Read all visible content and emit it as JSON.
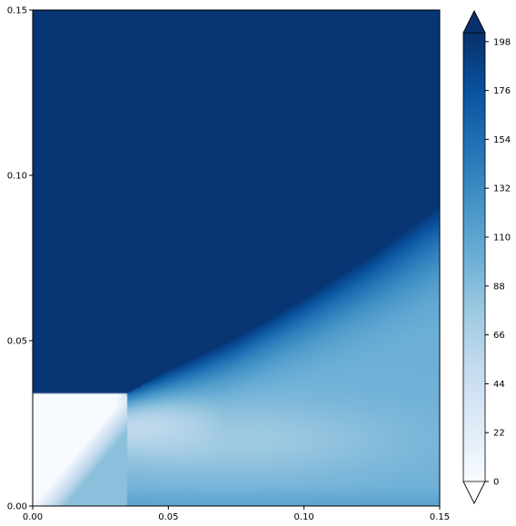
{
  "chart_data": {
    "type": "heatmap",
    "title": "",
    "xlabel": "",
    "ylabel": "",
    "xlim": [
      0.0,
      0.15
    ],
    "ylim": [
      0.0,
      0.15
    ],
    "x_ticks": [
      {
        "value": 0.0,
        "label": "0.00"
      },
      {
        "value": 0.05,
        "label": "0.05"
      },
      {
        "value": 0.1,
        "label": "0.10"
      },
      {
        "value": 0.15,
        "label": "0.15"
      }
    ],
    "y_ticks": [
      {
        "value": 0.0,
        "label": "0.00"
      },
      {
        "value": 0.05,
        "label": "0.05"
      },
      {
        "value": 0.1,
        "label": "0.10"
      },
      {
        "value": 0.15,
        "label": "0.15"
      }
    ],
    "colormap": "Blues",
    "colorbar": {
      "extend": "both",
      "range": [
        0,
        202
      ],
      "ticks": [
        0,
        22,
        44,
        66,
        88,
        110,
        132,
        154,
        176,
        198
      ],
      "tick_labels": [
        "0",
        "22",
        "44",
        "66",
        "88",
        "110",
        "132",
        "154",
        "176",
        "198"
      ],
      "under_color": "#ffffff",
      "over_color": "#08306b"
    },
    "field_description_values": {
      "saturated_region_value": 198,
      "low_rectangle_value": 0,
      "low_rectangle_extent": {
        "x": [
          0.0,
          0.035
        ],
        "y": [
          0.0,
          0.034
        ]
      },
      "boundary_curve_points": [
        {
          "x": 0.035,
          "y": 0.034
        },
        {
          "x": 0.05,
          "y": 0.041
        },
        {
          "x": 0.075,
          "y": 0.051
        },
        {
          "x": 0.1,
          "y": 0.063
        },
        {
          "x": 0.125,
          "y": 0.076
        },
        {
          "x": 0.15,
          "y": 0.091
        }
      ],
      "lower_right_level": 100
    }
  }
}
